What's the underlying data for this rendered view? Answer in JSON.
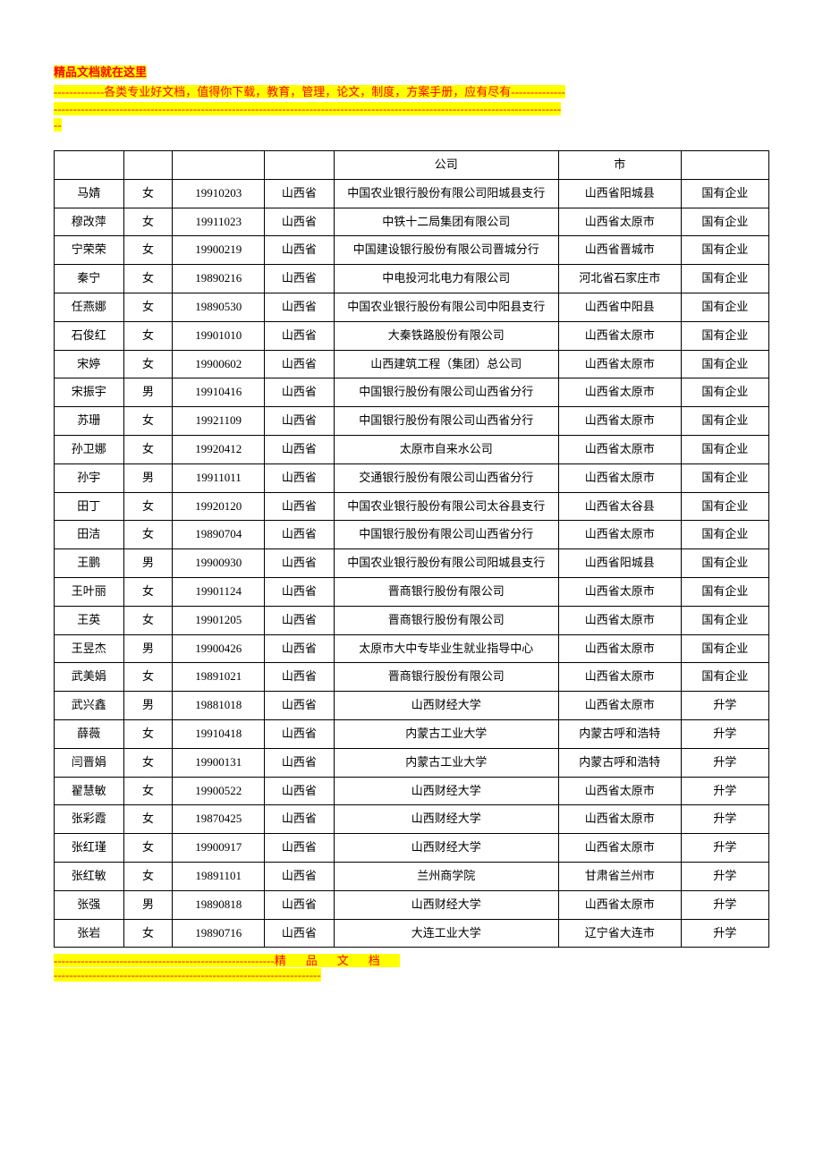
{
  "header": {
    "line1": "精品文档就在这里",
    "line2": "-------------各类专业好文档，值得你下载，教育，管理，论文，制度，方案手册，应有尽有--------------",
    "line3a": "-----------------------------------------------------------------------------------------------------------------------------------",
    "line3b": "--"
  },
  "table": {
    "first_row": [
      "",
      "",
      "",
      "",
      "公司",
      "市",
      ""
    ],
    "rows": [
      [
        "马婧",
        "女",
        "19910203",
        "山西省",
        "中国农业银行股份有限公司阳城县支行",
        "山西省阳城县",
        "国有企业"
      ],
      [
        "穆改萍",
        "女",
        "19911023",
        "山西省",
        "中铁十二局集团有限公司",
        "山西省太原市",
        "国有企业"
      ],
      [
        "宁荣荣",
        "女",
        "19900219",
        "山西省",
        "中国建设银行股份有限公司晋城分行",
        "山西省晋城市",
        "国有企业"
      ],
      [
        "秦宁",
        "女",
        "19890216",
        "山西省",
        "中电投河北电力有限公司",
        "河北省石家庄市",
        "国有企业"
      ],
      [
        "任燕娜",
        "女",
        "19890530",
        "山西省",
        "中国农业银行股份有限公司中阳县支行",
        "山西省中阳县",
        "国有企业"
      ],
      [
        "石俊红",
        "女",
        "19901010",
        "山西省",
        "大秦铁路股份有限公司",
        "山西省太原市",
        "国有企业"
      ],
      [
        "宋婷",
        "女",
        "19900602",
        "山西省",
        "山西建筑工程（集团）总公司",
        "山西省太原市",
        "国有企业"
      ],
      [
        "宋振宇",
        "男",
        "19910416",
        "山西省",
        "中国银行股份有限公司山西省分行",
        "山西省太原市",
        "国有企业"
      ],
      [
        "苏珊",
        "女",
        "19921109",
        "山西省",
        "中国银行股份有限公司山西省分行",
        "山西省太原市",
        "国有企业"
      ],
      [
        "孙卫娜",
        "女",
        "19920412",
        "山西省",
        "太原市自来水公司",
        "山西省太原市",
        "国有企业"
      ],
      [
        "孙宇",
        "男",
        "19911011",
        "山西省",
        "交通银行股份有限公司山西省分行",
        "山西省太原市",
        "国有企业"
      ],
      [
        "田丁",
        "女",
        "19920120",
        "山西省",
        "中国农业银行股份有限公司太谷县支行",
        "山西省太谷县",
        "国有企业"
      ],
      [
        "田洁",
        "女",
        "19890704",
        "山西省",
        "中国银行股份有限公司山西省分行",
        "山西省太原市",
        "国有企业"
      ],
      [
        "王鹏",
        "男",
        "19900930",
        "山西省",
        "中国农业银行股份有限公司阳城县支行",
        "山西省阳城县",
        "国有企业"
      ],
      [
        "王叶丽",
        "女",
        "19901124",
        "山西省",
        "晋商银行股份有限公司",
        "山西省太原市",
        "国有企业"
      ],
      [
        "王英",
        "女",
        "19901205",
        "山西省",
        "晋商银行股份有限公司",
        "山西省太原市",
        "国有企业"
      ],
      [
        "王昱杰",
        "男",
        "19900426",
        "山西省",
        "太原市大中专毕业生就业指导中心",
        "山西省太原市",
        "国有企业"
      ],
      [
        "武美娟",
        "女",
        "19891021",
        "山西省",
        "晋商银行股份有限公司",
        "山西省太原市",
        "国有企业"
      ],
      [
        "武兴鑫",
        "男",
        "19881018",
        "山西省",
        "山西财经大学",
        "山西省太原市",
        "升学"
      ],
      [
        "薛薇",
        "女",
        "19910418",
        "山西省",
        "内蒙古工业大学",
        "内蒙古呼和浩特",
        "升学"
      ],
      [
        "闫晋娟",
        "女",
        "19900131",
        "山西省",
        "内蒙古工业大学",
        "内蒙古呼和浩特",
        "升学"
      ],
      [
        "翟慧敏",
        "女",
        "19900522",
        "山西省",
        "山西财经大学",
        "山西省太原市",
        "升学"
      ],
      [
        "张彩霞",
        "女",
        "19870425",
        "山西省",
        "山西财经大学",
        "山西省太原市",
        "升学"
      ],
      [
        "张红瑾",
        "女",
        "19900917",
        "山西省",
        "山西财经大学",
        "山西省太原市",
        "升学"
      ],
      [
        "张红敏",
        "女",
        "19891101",
        "山西省",
        "兰州商学院",
        "甘肃省兰州市",
        "升学"
      ],
      [
        "张强",
        "男",
        "19890818",
        "山西省",
        "山西财经大学",
        "山西省太原市",
        "升学"
      ],
      [
        "张岩",
        "女",
        "19890716",
        "山西省",
        "大连工业大学",
        "辽宁省大连市",
        "升学"
      ]
    ]
  },
  "footer": {
    "dashes": "---------------------------------------------------------",
    "text": "精品文档",
    "line2": "---------------------------------------------------------------------"
  },
  "colors": {
    "highlight_bg": "#ffff00",
    "text_red": "#ff0000",
    "border": "#000000",
    "page_bg": "#ffffff"
  }
}
